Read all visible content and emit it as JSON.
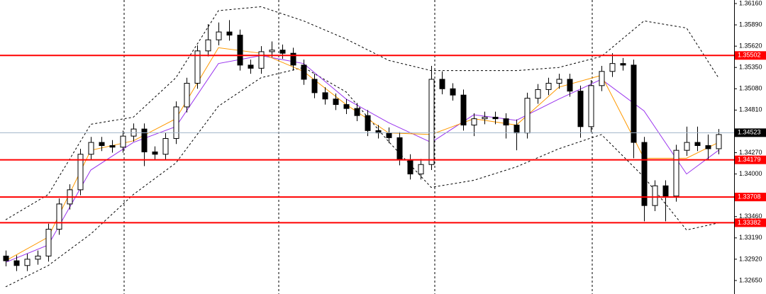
{
  "chart_data": {
    "type": "candlestick",
    "ylim": [
      1.32479,
      1.36205
    ],
    "yticks": [
      {
        "value": 1.3616,
        "label": "1.36160"
      },
      {
        "value": 1.3589,
        "label": "1.35890"
      },
      {
        "value": 1.3562,
        "label": "1.35620"
      },
      {
        "value": 1.3535,
        "label": "1.35350"
      },
      {
        "value": 1.3508,
        "label": "1.35080"
      },
      {
        "value": 1.3481,
        "label": "1.34810"
      },
      {
        "value": 1.3427,
        "label": "1.34270"
      },
      {
        "value": 1.34,
        "label": "1.34000"
      },
      {
        "value": 1.3346,
        "label": "1.33460"
      },
      {
        "value": 1.3319,
        "label": "1.33190"
      },
      {
        "value": 1.3292,
        "label": "1.32920"
      },
      {
        "value": 1.3265,
        "label": "1.32650"
      }
    ],
    "open": [
      1.3296,
      1.329,
      1.3284,
      1.3292,
      1.3296,
      1.333,
      1.3362,
      1.338,
      1.3425,
      1.344,
      1.3436,
      1.3434,
      1.3448,
      1.3457,
      1.3428,
      1.3425,
      1.3445,
      1.3485,
      1.3515,
      1.3556,
      1.357,
      1.358,
      1.3576,
      1.3538,
      1.3534,
      1.3555,
      1.3557,
      1.3553,
      1.3538,
      1.352,
      1.3503,
      1.3495,
      1.3488,
      1.3483,
      1.3474,
      1.3455,
      1.3452,
      1.3446,
      1.3418,
      1.34,
      1.3412,
      1.352,
      1.3508,
      1.35,
      1.3462,
      1.347,
      1.3472,
      1.347,
      1.3462,
      1.3452,
      1.3496,
      1.3507,
      1.3515,
      1.352,
      1.3505,
      1.346,
      1.3512,
      1.353,
      1.354,
      1.3538,
      1.344,
      1.336,
      1.3385,
      1.3372,
      1.343,
      1.344,
      1.3436,
      1.3432
    ],
    "high": [
      1.3303,
      1.3297,
      1.3299,
      1.3303,
      1.3337,
      1.3369,
      1.3387,
      1.3432,
      1.3447,
      1.3447,
      1.3443,
      1.3455,
      1.3464,
      1.3464,
      1.3435,
      1.3452,
      1.3492,
      1.3522,
      1.3563,
      1.359,
      1.3592,
      1.3595,
      1.3583,
      1.3545,
      1.3562,
      1.3568,
      1.3564,
      1.356,
      1.3545,
      1.3527,
      1.351,
      1.3502,
      1.3495,
      1.349,
      1.3481,
      1.3462,
      1.3459,
      1.3453,
      1.3425,
      1.3419,
      1.3537,
      1.353,
      1.3515,
      1.3507,
      1.3477,
      1.3479,
      1.3479,
      1.3477,
      1.3469,
      1.3503,
      1.3514,
      1.3522,
      1.3527,
      1.3527,
      1.3512,
      1.3519,
      1.3537,
      1.3553,
      1.3547,
      1.3545,
      1.3447,
      1.3392,
      1.3392,
      1.3437,
      1.346,
      1.346,
      1.345,
      1.3457
    ],
    "low": [
      1.3283,
      1.3277,
      1.3277,
      1.3285,
      1.3289,
      1.3323,
      1.3355,
      1.3373,
      1.3418,
      1.3429,
      1.3427,
      1.3427,
      1.3441,
      1.341,
      1.3418,
      1.3418,
      1.3438,
      1.3478,
      1.3508,
      1.3549,
      1.3563,
      1.3569,
      1.3531,
      1.3527,
      1.3527,
      1.3548,
      1.3546,
      1.3531,
      1.3513,
      1.3496,
      1.3488,
      1.3481,
      1.3476,
      1.3467,
      1.3448,
      1.3445,
      1.3439,
      1.3411,
      1.3393,
      1.3393,
      1.3405,
      1.3501,
      1.3493,
      1.3455,
      1.3448,
      1.3463,
      1.3463,
      1.3445,
      1.343,
      1.3445,
      1.3489,
      1.35,
      1.3508,
      1.3498,
      1.3446,
      1.3453,
      1.3505,
      1.3523,
      1.3531,
      1.342,
      1.334,
      1.3353,
      1.334,
      1.3365,
      1.3423,
      1.3429,
      1.3418,
      1.3425
    ],
    "close": [
      1.329,
      1.3284,
      1.3292,
      1.3296,
      1.333,
      1.3362,
      1.338,
      1.3425,
      1.344,
      1.3436,
      1.3434,
      1.3448,
      1.3457,
      1.3428,
      1.3425,
      1.3445,
      1.3485,
      1.3515,
      1.3556,
      1.357,
      1.358,
      1.3576,
      1.3538,
      1.3534,
      1.3555,
      1.3557,
      1.3553,
      1.3538,
      1.352,
      1.3503,
      1.3495,
      1.3488,
      1.3483,
      1.3474,
      1.3455,
      1.3452,
      1.3446,
      1.3418,
      1.34,
      1.3412,
      1.352,
      1.3508,
      1.35,
      1.3462,
      1.347,
      1.3472,
      1.347,
      1.3462,
      1.3452,
      1.3496,
      1.3507,
      1.3515,
      1.352,
      1.3505,
      1.346,
      1.3512,
      1.353,
      1.354,
      1.3538,
      1.344,
      1.336,
      1.3385,
      1.3372,
      1.343,
      1.344,
      1.3436,
      1.3432,
      1.345
    ],
    "lines": [
      {
        "color": "#000000",
        "dashed": true,
        "x": [
          0,
          4,
          8,
          12,
          16,
          20,
          24,
          28,
          32,
          36,
          40,
          44,
          48,
          52,
          56,
          60,
          64,
          67
        ],
        "values": [
          1.3342,
          1.3374,
          1.3463,
          1.3472,
          1.3522,
          1.3607,
          1.3612,
          1.3594,
          1.3571,
          1.3544,
          1.3531,
          1.3531,
          1.3531,
          1.3535,
          1.3549,
          1.3594,
          1.3585,
          1.3522
        ]
      },
      {
        "color": "#000000",
        "dashed": true,
        "x": [
          0,
          4,
          8,
          12,
          16,
          20,
          24,
          28,
          32,
          36,
          40,
          44,
          48,
          52,
          56,
          60,
          64,
          67
        ],
        "values": [
          1.3257,
          1.3284,
          1.3324,
          1.3374,
          1.3414,
          1.3486,
          1.3522,
          1.3535,
          1.3504,
          1.3441,
          1.3383,
          1.3392,
          1.3409,
          1.3432,
          1.345,
          1.3396,
          1.3329,
          1.3338
        ]
      },
      {
        "color": "#9933ee",
        "dashed": false,
        "x": [
          0,
          4,
          8,
          12,
          16,
          20,
          24,
          28,
          32,
          36,
          40,
          44,
          48,
          52,
          56,
          60,
          64,
          67
        ],
        "values": [
          1.3288,
          1.331,
          1.3405,
          1.344,
          1.346,
          1.354,
          1.355,
          1.354,
          1.3495,
          1.3465,
          1.344,
          1.3475,
          1.3468,
          1.3495,
          1.352,
          1.348,
          1.34,
          1.343
        ]
      },
      {
        "color": "#ff9900",
        "dashed": false,
        "x": [
          0,
          4,
          8,
          12,
          16,
          20,
          24,
          28,
          32,
          36,
          40,
          44,
          48,
          52,
          56,
          60,
          64,
          67
        ],
        "values": [
          1.329,
          1.332,
          1.343,
          1.3442,
          1.347,
          1.356,
          1.3553,
          1.353,
          1.3488,
          1.3452,
          1.345,
          1.347,
          1.3462,
          1.351,
          1.3525,
          1.342,
          1.342,
          1.344
        ]
      }
    ],
    "levels": {
      "color": "#ff0000",
      "values": [
        1.35502,
        1.34179,
        1.33708,
        1.33382
      ]
    },
    "current_price": {
      "color": "#a0b4c8",
      "value": 1.34523
    }
  }
}
